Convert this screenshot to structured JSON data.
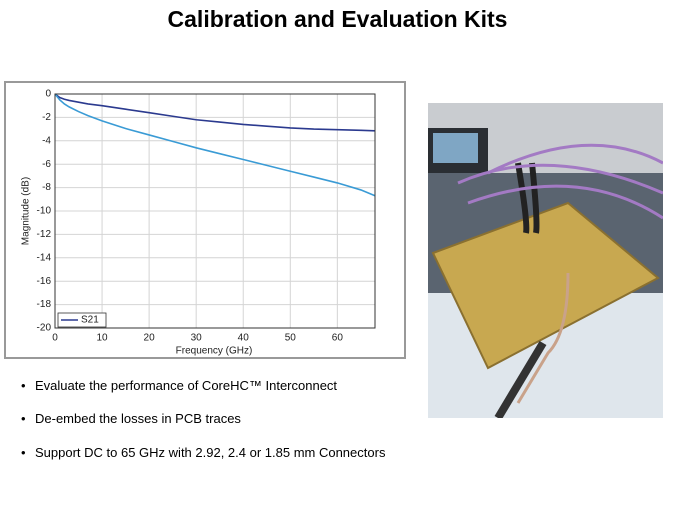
{
  "title": "Calibration and Evaluation Kits",
  "chart_data": {
    "type": "line",
    "xlabel": "Frequency (GHz)",
    "ylabel": "Magnitude (dB)",
    "x": [
      0,
      1,
      2,
      3,
      5,
      7,
      10,
      15,
      20,
      25,
      30,
      35,
      40,
      45,
      50,
      55,
      60,
      65,
      68
    ],
    "series": [
      {
        "name": "S21",
        "color": "#2b3a8f",
        "values": [
          0,
          -0.3,
          -0.45,
          -0.55,
          -0.7,
          -0.85,
          -1.0,
          -1.3,
          -1.6,
          -1.9,
          -2.2,
          -2.4,
          -2.6,
          -2.75,
          -2.9,
          -3.0,
          -3.05,
          -3.1,
          -3.15
        ]
      },
      {
        "color": "#3a9bd5",
        "values": [
          0,
          -0.5,
          -0.85,
          -1.1,
          -1.5,
          -1.85,
          -2.3,
          -2.95,
          -3.5,
          -4.05,
          -4.6,
          -5.1,
          -5.6,
          -6.1,
          -6.6,
          -7.1,
          -7.6,
          -8.2,
          -8.7
        ]
      }
    ],
    "xlim": [
      0,
      68
    ],
    "xticks": [
      0,
      10,
      20,
      30,
      40,
      50,
      60
    ],
    "ylim": [
      -20,
      0
    ],
    "yticks": [
      -20,
      -18,
      -16,
      -14,
      -12,
      -10,
      -8,
      -6,
      -4,
      -2,
      0
    ],
    "grid": true,
    "legend": "lower-left"
  },
  "bullets": [
    "Evaluate the performance of CoreHC™ Interconnect",
    "De-embed the losses in PCB traces",
    "Support DC to 65 GHz with 2.92, 2.4 or 1.85 mm Connectors"
  ]
}
